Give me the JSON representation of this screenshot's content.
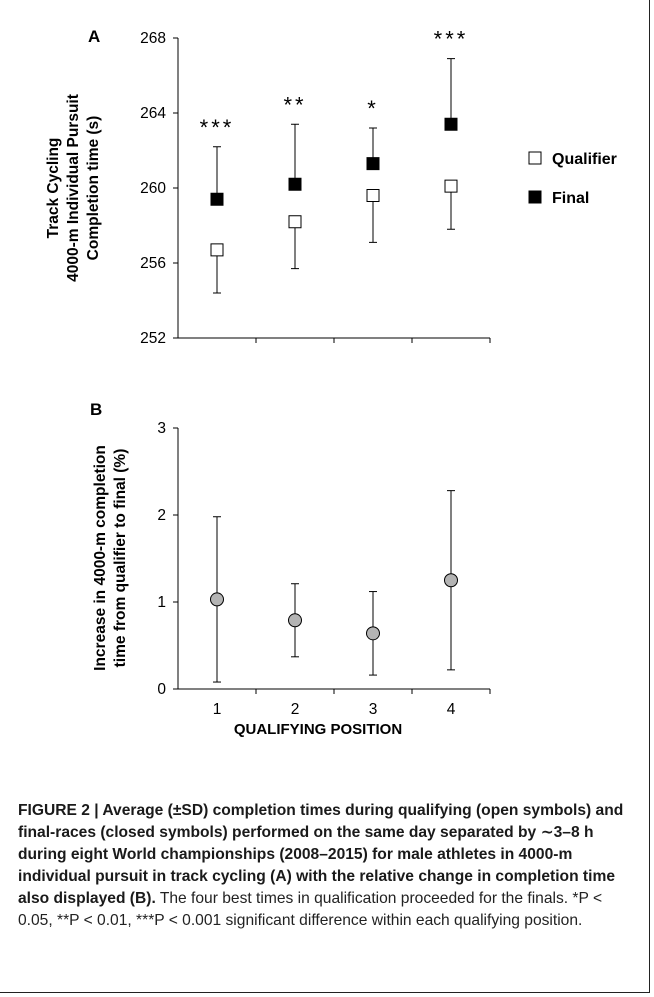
{
  "chart_data": [
    {
      "panel_label": "A",
      "type": "scatter",
      "ylabel_lines": [
        "Track Cycling",
        "4000-m Individual Pursuit",
        "Completion time (s)"
      ],
      "ylim": [
        252,
        268
      ],
      "yticks": [
        252,
        256,
        260,
        264,
        268
      ],
      "x": [
        1,
        2,
        3,
        4
      ],
      "series": [
        {
          "name": "Qualifier",
          "marker": "open-square",
          "color": "#ffffff",
          "values": [
            256.7,
            258.2,
            259.6,
            260.1
          ],
          "sd": [
            2.3,
            2.5,
            2.5,
            2.3
          ]
        },
        {
          "name": "Final",
          "marker": "filled-square",
          "color": "#000000",
          "values": [
            259.4,
            260.2,
            261.3,
            263.4
          ],
          "sd": [
            2.8,
            3.2,
            1.9,
            3.5
          ]
        }
      ],
      "significance": [
        "***",
        "**",
        "*",
        "***"
      ],
      "legend_position": "right"
    },
    {
      "panel_label": "B",
      "type": "scatter",
      "ylabel_lines": [
        "Increase in 4000-m completion",
        "time from qualifier to final (%)"
      ],
      "ylim": [
        0,
        3
      ],
      "yticks": [
        0,
        1,
        2,
        3
      ],
      "x": [
        1,
        2,
        3,
        4
      ],
      "xticks": [
        "1",
        "2",
        "3",
        "4"
      ],
      "xlabel": "QUALIFYING POSITION",
      "series": [
        {
          "marker": "grey-circle",
          "color": "#b4b4b4",
          "values": [
            1.03,
            0.79,
            0.64,
            1.25
          ],
          "sd": [
            0.95,
            0.42,
            0.48,
            1.03
          ]
        }
      ]
    }
  ],
  "caption": {
    "bold_text": "FIGURE 2 | Average (±SD) completion times during qualifying (open symbols) and final-races (closed symbols) performed on the same day separated by ∼3–8 h during eight World championships (2008–2015) for male athletes in 4000-m individual pursuit in track cycling (A) with the relative change in completion time also displayed (B).",
    "normal_text": " The four best times in qualification proceeded for the finals. *P < 0.05, **P < 0.01, ***P < 0.001 significant difference within each qualifying position."
  }
}
